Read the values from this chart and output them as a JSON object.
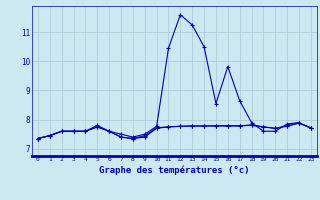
{
  "title": "Graphe des températures (°c)",
  "background_color": "#cce8f0",
  "grid_color": "#a8c8d8",
  "line_color": "#0000bb",
  "x_labels": [
    "0",
    "1",
    "2",
    "3",
    "4",
    "5",
    "6",
    "7",
    "8",
    "9",
    "10",
    "11",
    "12",
    "13",
    "14",
    "15",
    "16",
    "17",
    "18",
    "19",
    "20",
    "21",
    "22",
    "23"
  ],
  "x_values": [
    0,
    1,
    2,
    3,
    4,
    5,
    6,
    7,
    8,
    9,
    10,
    11,
    12,
    13,
    14,
    15,
    16,
    17,
    18,
    19,
    20,
    21,
    22,
    23
  ],
  "ylim": [
    6.75,
    11.9
  ],
  "yticks": [
    7,
    8,
    9,
    10,
    11
  ],
  "series": [
    [
      7.35,
      7.45,
      7.6,
      7.6,
      7.6,
      7.8,
      7.6,
      7.5,
      7.4,
      7.5,
      7.77,
      10.45,
      11.6,
      11.25,
      10.5,
      8.55,
      9.82,
      8.65,
      7.9,
      7.6,
      7.6,
      7.85,
      7.9,
      7.7
    ],
    [
      7.35,
      7.45,
      7.6,
      7.6,
      7.6,
      7.75,
      7.6,
      7.4,
      7.35,
      7.4,
      7.7,
      7.75,
      7.77,
      7.78,
      7.78,
      7.79,
      7.79,
      7.79,
      7.8,
      7.75,
      7.7,
      7.78,
      7.88,
      7.72
    ],
    [
      7.35,
      7.45,
      7.6,
      7.6,
      7.6,
      7.75,
      7.6,
      7.4,
      7.35,
      7.45,
      7.72,
      7.75,
      7.77,
      7.78,
      7.78,
      7.78,
      7.78,
      7.78,
      7.82,
      7.75,
      7.7,
      7.78,
      7.88,
      7.72
    ]
  ]
}
